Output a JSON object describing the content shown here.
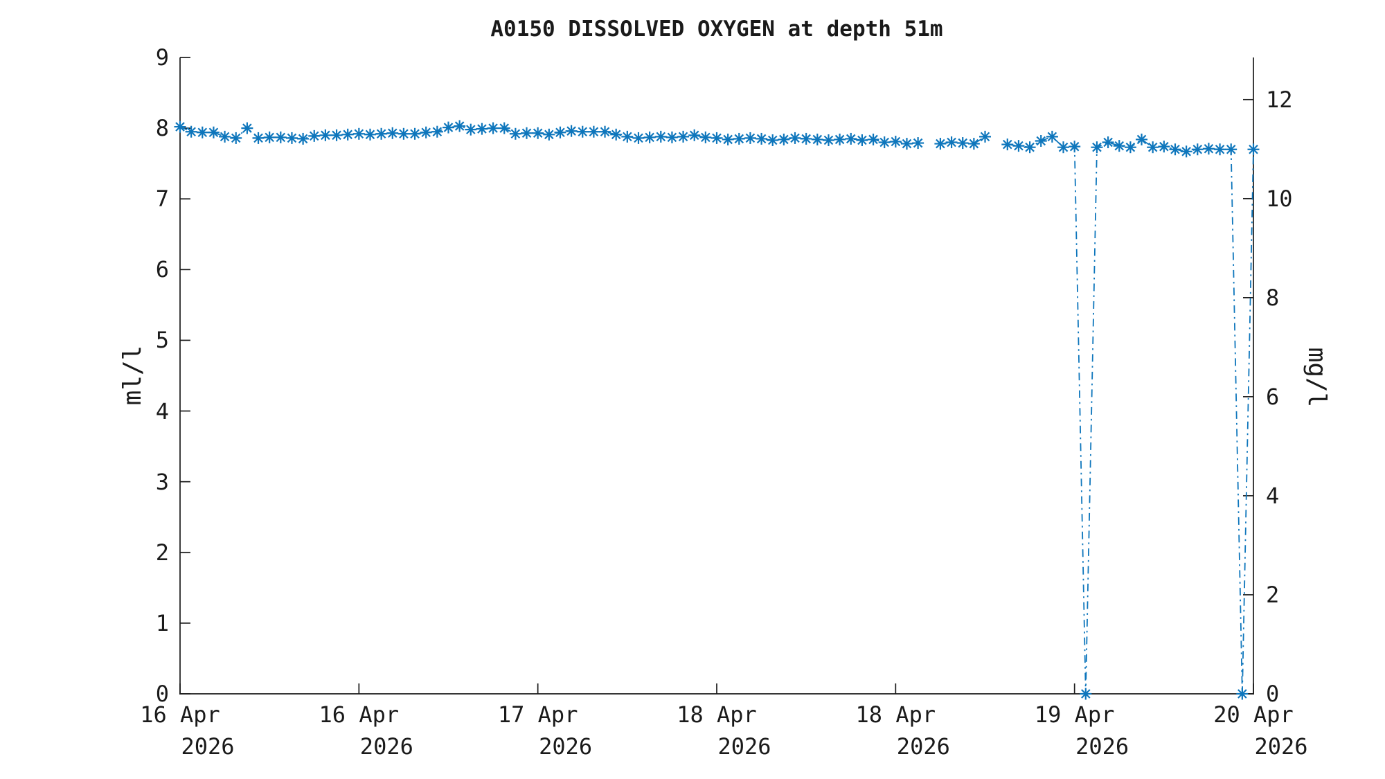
{
  "title": "A0150 DISSOLVED OXYGEN at depth 51m",
  "colors": {
    "series_blue": "#0e76bc",
    "axis_text": "#1a1a1a",
    "background": "#ffffff"
  },
  "chart_data": {
    "type": "line",
    "title": "A0150 DISSOLVED OXYGEN at depth 51m",
    "grid": false,
    "legend": null,
    "left_axis": {
      "label": "ml/l",
      "range": [
        0,
        9
      ],
      "ticks": [
        0,
        1,
        2,
        3,
        4,
        5,
        6,
        7,
        8,
        9
      ]
    },
    "right_axis": {
      "label": "mg/l",
      "range": [
        0,
        12.85
      ],
      "ticks": [
        0,
        2,
        4,
        6,
        8,
        10,
        12
      ],
      "conversion_factor_from_left": 1.4276
    },
    "x_axis": {
      "unit": "hours since 16 Apr 2026 00:00 (one sample per hour, index = hour)",
      "range_hours": [
        0,
        96
      ],
      "tick_hours": [
        0,
        16,
        32,
        48,
        64,
        80,
        96
      ],
      "tick_labels": [
        {
          "day": "16 Apr",
          "year": "2026"
        },
        {
          "day": "16 Apr",
          "year": "2026"
        },
        {
          "day": "17 Apr",
          "year": "2026"
        },
        {
          "day": "18 Apr",
          "year": "2026"
        },
        {
          "day": "18 Apr",
          "year": "2026"
        },
        {
          "day": "19 Apr",
          "year": "2026"
        },
        {
          "day": "20 Apr",
          "year": "2026"
        }
      ]
    },
    "series": [
      {
        "name": "dissolved-oxygen",
        "marker": "asterisk",
        "line_style": "dash-dot",
        "values_ml_per_l": [
          8.02,
          7.95,
          7.94,
          7.94,
          7.88,
          7.86,
          8.0,
          7.86,
          7.87,
          7.87,
          7.86,
          7.85,
          7.89,
          7.9,
          7.9,
          7.91,
          7.92,
          7.91,
          7.92,
          7.93,
          7.92,
          7.92,
          7.94,
          7.95,
          8.01,
          8.03,
          7.98,
          7.99,
          8.0,
          8.0,
          7.92,
          7.93,
          7.93,
          7.91,
          7.94,
          7.96,
          7.95,
          7.95,
          7.95,
          7.91,
          7.88,
          7.86,
          7.87,
          7.88,
          7.87,
          7.88,
          7.9,
          7.87,
          7.86,
          7.84,
          7.85,
          7.86,
          7.85,
          7.83,
          7.84,
          7.86,
          7.85,
          7.84,
          7.83,
          7.84,
          7.85,
          7.83,
          7.84,
          7.8,
          7.81,
          7.78,
          7.79,
          null,
          7.78,
          7.8,
          7.79,
          7.78,
          7.88,
          null,
          7.77,
          7.75,
          7.73,
          7.82,
          7.88,
          7.73,
          7.74,
          0.0,
          7.73,
          7.8,
          7.75,
          7.73,
          7.84,
          7.73,
          7.74,
          7.7,
          7.67,
          7.7,
          7.71,
          7.7,
          7.7,
          0.0,
          7.7
        ]
      }
    ]
  }
}
